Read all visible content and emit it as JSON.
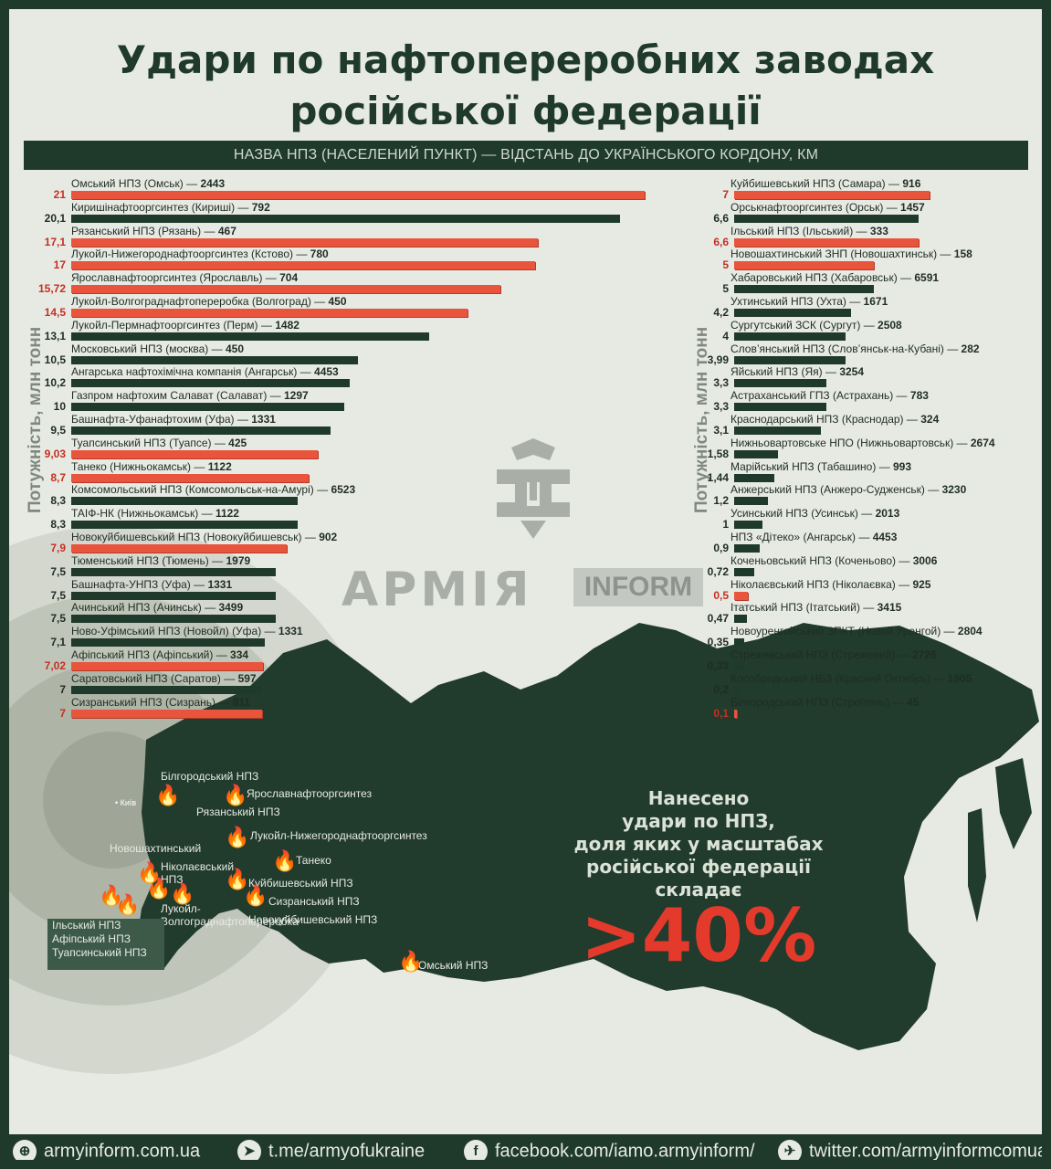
{
  "title_lines": [
    "Удари по нафтопереробних заводах",
    "російської федерації"
  ],
  "subheader": "НАЗВА НПЗ (НАСЕЛЕНИЙ ПУНКТ) — ВІДСТАНЬ ДО УКРАЇНСЬКОГО КОРДОНУ, КМ",
  "y_axis_label": "Потужність, млн тонн",
  "logo": {
    "word": "АРМІЯ",
    "box": "INFORM"
  },
  "claim_lines": [
    "Нанесено",
    "удари по НПЗ,",
    "доля яких у масштабах",
    "російської федерації",
    "складає"
  ],
  "big_percent": ">40%",
  "colors": {
    "struck": "#e8553c",
    "not_struck": "#1f3a2b",
    "struck_value": "#c62f22",
    "dark_green": "#1f3a2b"
  },
  "map": {
    "kyiv": "• Київ",
    "legend_box": [
      "Ільський НПЗ",
      "Афіпський НПЗ",
      "Туапсинський НПЗ"
    ],
    "plant_labels": [
      "Білгородський НПЗ",
      "Ярославнафтооргсинтез",
      "Рязанський НПЗ",
      "Лукойл-Нижегороднафтооргсинтез",
      "Новошахтинський",
      "Танеко",
      "Ніколаєвський",
      "НПЗ",
      "Куйбишевський НПЗ",
      "Сизранський НПЗ",
      "Новокуйбишевський НПЗ",
      "Лукойл-",
      "Волгограднафтопереробка",
      "Омський НПЗ"
    ],
    "fire_icons": "fire-icon"
  },
  "chart_data": {
    "type": "bar",
    "orientation": "horizontal",
    "title": "Удари по нафтопереробних заводах російської федерації",
    "xlabel": "НАЗВА НПЗ (НАСЕЛЕНИЙ ПУНКТ) — ВІДСТАНЬ ДО УКРАЇНСЬКОГО КОРДОНУ, КМ",
    "ylabel": "Потужність, млн тонн",
    "legend": "none",
    "grid": false,
    "series_encoding": {
      "struck": "red bar",
      "not_struck": "dark green bar"
    },
    "panels": [
      {
        "xlim": [
          0,
          21
        ],
        "rows": [
          {
            "label": "21",
            "value": 21,
            "name": "Омський НПЗ (Омськ)",
            "distance": "2443",
            "struck": true
          },
          {
            "label": "20,1",
            "value": 20.1,
            "name": "Киришінафтооргсинтез (Кириші)",
            "distance": "792",
            "struck": false
          },
          {
            "label": "17,1",
            "value": 17.1,
            "name": "Рязанський НПЗ (Рязань)",
            "distance": "467",
            "struck": true
          },
          {
            "label": "17",
            "value": 17,
            "name": "Лукойл-Нижегороднафтооргсинтез (Кстово)",
            "distance": "780",
            "struck": true
          },
          {
            "label": "15,72",
            "value": 15.72,
            "name": "Ярославнафтооргсинтез (Ярославль)",
            "distance": "704",
            "struck": true
          },
          {
            "label": "14,5",
            "value": 14.5,
            "name": "Лукойл-Волгограднафтопереробка (Волгоград)",
            "distance": "450",
            "struck": true
          },
          {
            "label": "13,1",
            "value": 13.1,
            "name": "Лукойл-Пермнафтооргсинтез (Перм)",
            "distance": "1482",
            "struck": false
          },
          {
            "label": "10,5",
            "value": 10.5,
            "name": "Московський НПЗ (москва)",
            "distance": "450",
            "struck": false
          },
          {
            "label": "10,2",
            "value": 10.2,
            "name": "Ангарська нафтохімічна компанія (Ангарськ)",
            "distance": "4453",
            "struck": false
          },
          {
            "label": "10",
            "value": 10,
            "name": "Газпром нафтохим Салават (Салават)",
            "distance": "1297",
            "struck": false
          },
          {
            "label": "9,5",
            "value": 9.5,
            "name": "Башнафта-Уфанафтохим (Уфа)",
            "distance": "1331",
            "struck": false
          },
          {
            "label": "9,03",
            "value": 9.03,
            "name": "Туапсинський НПЗ (Туапсе)",
            "distance": "425",
            "struck": true
          },
          {
            "label": "8,7",
            "value": 8.7,
            "name": "Танеко (Нижньокамськ)",
            "distance": "1122",
            "struck": true
          },
          {
            "label": "8,3",
            "value": 8.3,
            "name": "Комсомольський НПЗ (Комсомольськ-на-Амурі)",
            "distance": "6523",
            "struck": false
          },
          {
            "label": "8,3",
            "value": 8.3,
            "name": "ТАІФ-НК (Нижньокамськ)",
            "distance": "1122",
            "struck": false
          },
          {
            "label": "7,9",
            "value": 7.9,
            "name": "Новокуйбишевський НПЗ (Новокуйбишевськ)",
            "distance": "902",
            "struck": true
          },
          {
            "label": "7,5",
            "value": 7.5,
            "name": "Тюменський НПЗ (Тюмень)",
            "distance": "1979",
            "struck": false
          },
          {
            "label": "7,5",
            "value": 7.5,
            "name": "Башнафта-УНПЗ (Уфа)",
            "distance": "1331",
            "struck": false
          },
          {
            "label": "7,5",
            "value": 7.5,
            "name": "Ачинський НПЗ (Ачинськ)",
            "distance": "3499",
            "struck": false
          },
          {
            "label": "7,1",
            "value": 7.1,
            "name": "Ново-Уфімський НПЗ (Новойл) (Уфа)",
            "distance": "1331",
            "struck": false
          },
          {
            "label": "7,02",
            "value": 7.02,
            "name": "Афіпський НПЗ (Афіпський)",
            "distance": "334",
            "struck": true
          },
          {
            "label": "7",
            "value": 7,
            "name": "Саратовський НПЗ (Саратов)",
            "distance": "597",
            "struck": false
          },
          {
            "label": "7",
            "value": 7,
            "name": "Сизранський НПЗ (Сизрань)",
            "distance": "811",
            "struck": true
          }
        ]
      },
      {
        "xlim": [
          0,
          7
        ],
        "rows": [
          {
            "label": "7",
            "value": 7,
            "name": "Куйбишевський НПЗ (Самара)",
            "distance": "916",
            "struck": true
          },
          {
            "label": "6,6",
            "value": 6.6,
            "name": "Орськнафтооргсинтез (Орськ)",
            "distance": "1457",
            "struck": false
          },
          {
            "label": "6,6",
            "value": 6.6,
            "name": "Ільський НПЗ (Ільський)",
            "distance": "333",
            "struck": true
          },
          {
            "label": "5",
            "value": 5,
            "name": "Новошахтинський ЗНП (Новошахтинськ)",
            "distance": "158",
            "struck": true
          },
          {
            "label": "5",
            "value": 5,
            "name": "Хабаровський НПЗ (Хабаровськ)",
            "distance": "6591",
            "struck": false
          },
          {
            "label": "4,2",
            "value": 4.2,
            "name": "Ухтинський НПЗ (Ухта)",
            "distance": "1671",
            "struck": false
          },
          {
            "label": "4",
            "value": 4,
            "name": "Сургутський ЗСК (Сургут)",
            "distance": "2508",
            "struck": false
          },
          {
            "label": "3,99",
            "value": 3.99,
            "name": "Слов’янський НПЗ (Слов’янськ-на-Кубані)",
            "distance": "282",
            "struck": false
          },
          {
            "label": "3,3",
            "value": 3.3,
            "name": "Яйський НПЗ (Яя)",
            "distance": "3254",
            "struck": false
          },
          {
            "label": "3,3",
            "value": 3.3,
            "name": "Астраханський ГПЗ (Астрахань)",
            "distance": "783",
            "struck": false
          },
          {
            "label": "3,1",
            "value": 3.1,
            "name": "Краснодарський НПЗ (Краснодар)",
            "distance": "324",
            "struck": false
          },
          {
            "label": "1,58",
            "value": 1.58,
            "name": "Нижньовартовське НПО (Нижньовартовськ)",
            "distance": "2674",
            "struck": false
          },
          {
            "label": "1,44",
            "value": 1.44,
            "name": "Марійський НПЗ (Табашино)",
            "distance": "993",
            "struck": false
          },
          {
            "label": "1,2",
            "value": 1.2,
            "name": "Анжерський НПЗ (Анжеро-Судженськ)",
            "distance": "3230",
            "struck": false
          },
          {
            "label": "1",
            "value": 1,
            "name": "Усинський НПЗ (Усинськ)",
            "distance": "2013",
            "struck": false
          },
          {
            "label": "0,9",
            "value": 0.9,
            "name": "НПЗ «Дітеко» (Ангарськ)",
            "distance": "4453",
            "struck": false
          },
          {
            "label": "0,72",
            "value": 0.72,
            "name": "Коченьовський НПЗ (Коченьово)",
            "distance": "3006",
            "struck": false
          },
          {
            "label": "0,5",
            "value": 0.5,
            "name": "Ніколаєвський НПЗ (Ніколаєвка)",
            "distance": "925",
            "struck": true
          },
          {
            "label": "0,47",
            "value": 0.47,
            "name": "Ітатський НПЗ (Ітатський)",
            "distance": "3415",
            "struck": false
          },
          {
            "label": "0,35",
            "value": 0.35,
            "name": "Новоуренгойський ЗПКТ (Новий Уренгой)",
            "distance": "2804",
            "struck": false
          },
          {
            "label": "0,33",
            "value": 0.33,
            "name": "Стрежевський НПЗ (Стрежевий)",
            "distance": "2726",
            "struck": false
          },
          {
            "label": "0,2",
            "value": 0.2,
            "name": "Кособродський НБЗ (Красний Октябрь)",
            "distance": "1905",
            "struck": false
          },
          {
            "label": "0,1",
            "value": 0.1,
            "name": "Білгородський НПЗ (Строїтель)",
            "distance": "45",
            "struck": true
          }
        ]
      }
    ]
  },
  "footer": [
    {
      "icon": "globe-icon",
      "text": "armyinform.com.ua"
    },
    {
      "icon": "telegram-icon",
      "text": "t.me/armyofukraine"
    },
    {
      "icon": "facebook-icon",
      "text": "facebook.com/iamo.armyinform/"
    },
    {
      "icon": "twitter-icon",
      "text": "twitter.com/armyinformcomua"
    }
  ]
}
